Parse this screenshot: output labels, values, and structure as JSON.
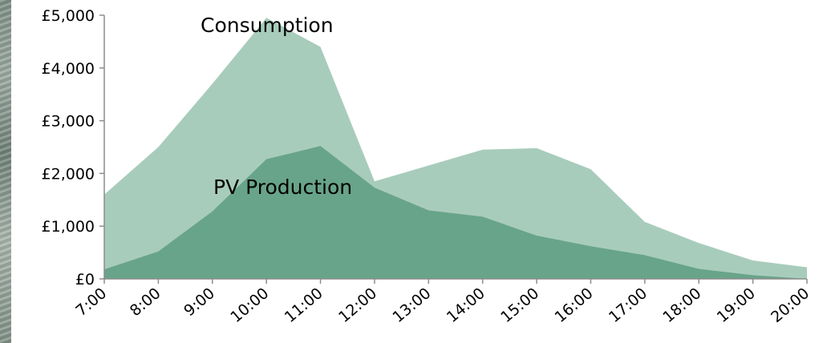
{
  "chart_data": {
    "type": "area",
    "x": [
      "7:00",
      "8:00",
      "9:00",
      "10:00",
      "11:00",
      "12:00",
      "13:00",
      "14:00",
      "15:00",
      "16:00",
      "17:00",
      "18:00",
      "19:00",
      "20:00"
    ],
    "series": [
      {
        "name": "Consumption",
        "values": [
          1600,
          2500,
          3700,
          4950,
          4400,
          1850,
          2150,
          2450,
          2480,
          2080,
          1080,
          680,
          350,
          220
        ],
        "color": "#a8ccbc"
      },
      {
        "name": "PV Production",
        "values": [
          180,
          520,
          1280,
          2270,
          2520,
          1730,
          1300,
          1180,
          820,
          620,
          450,
          190,
          70,
          0
        ],
        "color": "#68a48a"
      }
    ],
    "y_ticks": [
      "£0",
      "£1,000",
      "£2,000",
      "£3,000",
      "£4,000",
      "£5,000"
    ],
    "ylim": [
      0,
      5000
    ],
    "grid": false,
    "legend": "inline labels"
  }
}
